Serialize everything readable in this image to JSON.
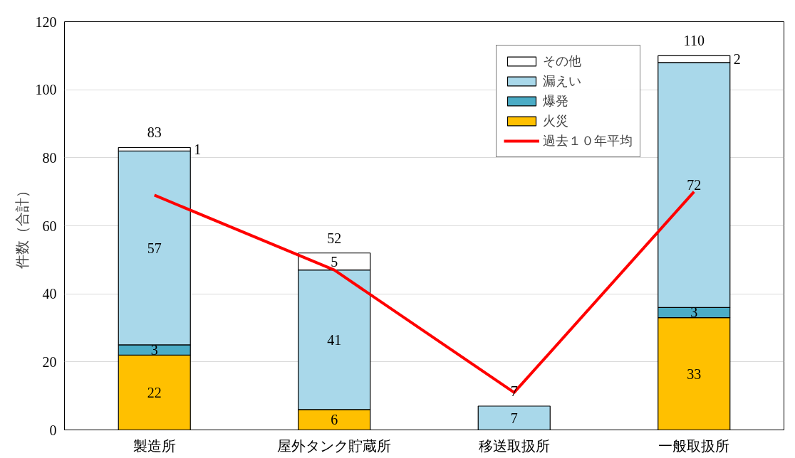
{
  "chart_data": {
    "type": "bar",
    "stacked": true,
    "ylabel": "件数（合計）",
    "categories": [
      "製造所",
      "屋外タンク貯蔵所",
      "移送取扱所",
      "一般取扱所"
    ],
    "ylim": [
      0,
      120
    ],
    "yticks": [
      0,
      20,
      40,
      60,
      80,
      100,
      120
    ],
    "grid": "y",
    "legend": "top right",
    "series": [
      {
        "name": "火災",
        "color": "#ffc000",
        "values": [
          22,
          6,
          null,
          33
        ],
        "value_labels": [
          "22",
          "6",
          null,
          "33"
        ]
      },
      {
        "name": "爆発",
        "color": "#4bacc6",
        "values": [
          3,
          null,
          null,
          3
        ],
        "value_labels": [
          "3",
          null,
          null,
          "3"
        ]
      },
      {
        "name": "漏えい",
        "color": "#a9d8ea",
        "values": [
          57,
          41,
          7,
          72
        ],
        "value_labels": [
          "57",
          "41",
          "7",
          "72"
        ]
      },
      {
        "name": "その他",
        "color": "#ffffff",
        "values": [
          1,
          5,
          null,
          2
        ],
        "value_labels": [
          "1",
          "5",
          null,
          "2"
        ]
      },
      {
        "name": "過去１０年平均",
        "type": "line",
        "color": "#ff0000",
        "values": [
          69,
          47,
          11,
          70
        ]
      }
    ],
    "totals": [
      "83",
      "52",
      "7",
      "110"
    ]
  }
}
